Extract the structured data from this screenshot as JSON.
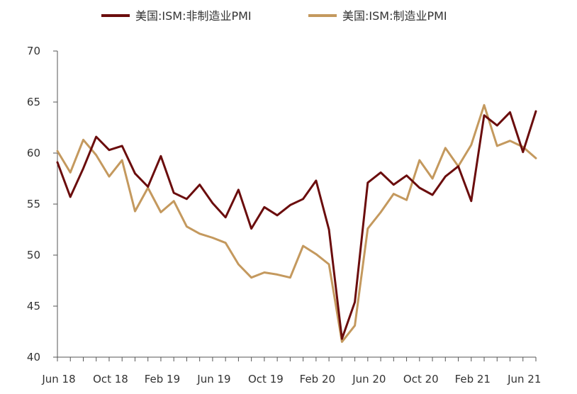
{
  "chart_data": {
    "type": "line",
    "title": "",
    "xlabel": "",
    "ylabel": "",
    "ylim": [
      40,
      70
    ],
    "yticks": [
      40,
      45,
      50,
      55,
      60,
      65,
      70
    ],
    "grid": false,
    "legend": "top",
    "x_tick_labels": [
      "Jun 18",
      "Oct 18",
      "Feb 19",
      "Jun 19",
      "Oct 19",
      "Feb 20",
      "Jun 20",
      "Oct 20",
      "Feb 21",
      "Jun 21"
    ],
    "categories": [
      "2018-06",
      "2018-07",
      "2018-08",
      "2018-09",
      "2018-10",
      "2018-11",
      "2018-12",
      "2019-01",
      "2019-02",
      "2019-03",
      "2019-04",
      "2019-05",
      "2019-06",
      "2019-07",
      "2019-08",
      "2019-09",
      "2019-10",
      "2019-11",
      "2019-12",
      "2020-01",
      "2020-02",
      "2020-03",
      "2020-04",
      "2020-05",
      "2020-06",
      "2020-07",
      "2020-08",
      "2020-09",
      "2020-10",
      "2020-11",
      "2020-12",
      "2021-01",
      "2021-02",
      "2021-03",
      "2021-04",
      "2021-05",
      "2021-06",
      "2021-07"
    ],
    "series": [
      {
        "name": "美国:ISM:非制造业PMI",
        "color": "#6b0d0d",
        "values": [
          59.1,
          55.7,
          58.5,
          61.6,
          60.3,
          60.7,
          58.0,
          56.7,
          59.7,
          56.1,
          55.5,
          56.9,
          55.1,
          53.7,
          56.4,
          52.6,
          54.7,
          53.9,
          54.9,
          55.5,
          57.3,
          52.5,
          41.8,
          45.4,
          57.1,
          58.1,
          56.9,
          57.8,
          56.6,
          55.9,
          57.7,
          58.7,
          55.3,
          63.7,
          62.7,
          64.0,
          60.1,
          64.1
        ]
      },
      {
        "name": "美国:ISM:制造业PMI",
        "color": "#c4995e",
        "values": [
          60.2,
          58.1,
          61.3,
          59.8,
          57.7,
          59.3,
          54.3,
          56.6,
          54.2,
          55.3,
          52.8,
          52.1,
          51.7,
          51.2,
          49.1,
          47.8,
          48.3,
          48.1,
          47.8,
          50.9,
          50.1,
          49.1,
          41.5,
          43.1,
          52.6,
          54.2,
          56.0,
          55.4,
          59.3,
          57.5,
          60.5,
          58.7,
          60.8,
          64.7,
          60.7,
          61.2,
          60.6,
          59.5
        ]
      }
    ]
  }
}
